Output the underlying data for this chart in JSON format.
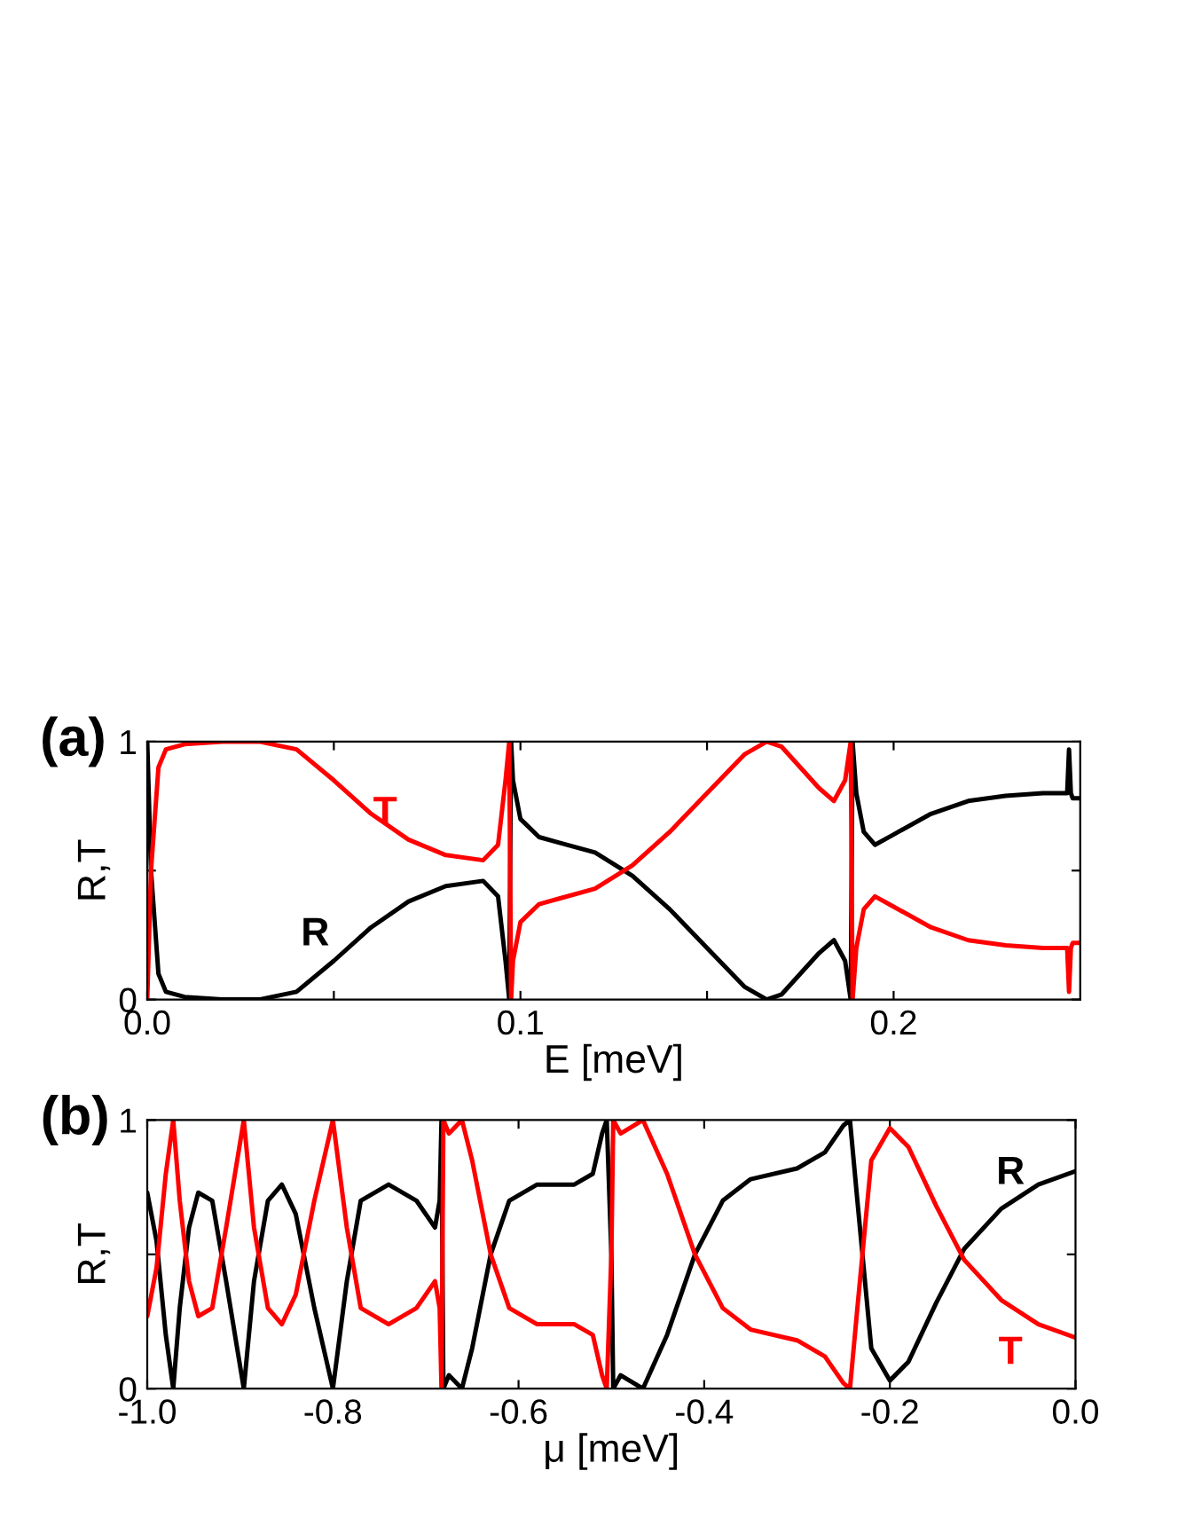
{
  "chart_data": [
    {
      "type": "line",
      "title": "(a)",
      "xlabel": "E [meV]",
      "ylabel": "R,T",
      "grid": false,
      "legend": false,
      "x": [
        0,
        0.001,
        0.003,
        0.005,
        0.01,
        0.02,
        0.03,
        0.04,
        0.05,
        0.06,
        0.07,
        0.08,
        0.09,
        0.094,
        0.096,
        0.097,
        0.0975,
        0.098,
        0.1,
        0.105,
        0.11,
        0.12,
        0.13,
        0.14,
        0.15,
        0.16,
        0.166,
        0.17,
        0.18,
        0.184,
        0.187,
        0.1885,
        0.189,
        0.19,
        0.192,
        0.195,
        0.2,
        0.21,
        0.22,
        0.23,
        0.24,
        0.2465,
        0.247,
        0.2475,
        0.248,
        0.25
      ],
      "series": [
        {
          "name": "R",
          "color": "#000000",
          "values": [
            1,
            0.5,
            0.1,
            0.03,
            0.01,
            0,
            0,
            0.03,
            0.15,
            0.28,
            0.38,
            0.44,
            0.46,
            0.4,
            0.15,
            0,
            1.0,
            0.85,
            0.7,
            0.63,
            0.61,
            0.57,
            0.48,
            0.35,
            0.2,
            0.05,
            0,
            0.02,
            0.18,
            0.23,
            0.15,
            0,
            1.0,
            0.8,
            0.65,
            0.6,
            0.64,
            0.72,
            0.77,
            0.79,
            0.8,
            0.8,
            0.97,
            0.8,
            0.78,
            0.78
          ]
        },
        {
          "name": "T",
          "color": "#ff0000",
          "values": [
            0,
            0.5,
            0.9,
            0.97,
            0.99,
            1.0,
            1.0,
            0.97,
            0.85,
            0.72,
            0.62,
            0.56,
            0.54,
            0.6,
            0.85,
            1.0,
            0.0,
            0.15,
            0.3,
            0.37,
            0.39,
            0.43,
            0.52,
            0.65,
            0.8,
            0.95,
            1.0,
            0.98,
            0.82,
            0.77,
            0.85,
            1.0,
            0.0,
            0.2,
            0.35,
            0.4,
            0.36,
            0.28,
            0.23,
            0.21,
            0.2,
            0.2,
            0.03,
            0.2,
            0.22,
            0.22
          ]
        }
      ],
      "xlim": [
        0,
        0.25
      ],
      "xticks": [
        {
          "value": 0,
          "label": "0.0"
        },
        {
          "value": 0.05,
          "label": null
        },
        {
          "value": 0.1,
          "label": "0.1"
        },
        {
          "value": 0.15,
          "label": null
        },
        {
          "value": 0.2,
          "label": "0.2"
        }
      ],
      "ylim": [
        0,
        1
      ],
      "yticks": [
        0,
        {
          "value": 0.5,
          "label": null
        },
        1
      ]
    },
    {
      "type": "line",
      "title": "(b)",
      "xlabel": "μ [meV]",
      "ylabel": "R,T",
      "grid": false,
      "legend": false,
      "x": [
        -1.0,
        -0.99,
        -0.98,
        -0.972,
        -0.965,
        -0.955,
        -0.945,
        -0.93,
        -0.915,
        -0.896,
        -0.885,
        -0.87,
        -0.855,
        -0.84,
        -0.82,
        -0.8,
        -0.785,
        -0.77,
        -0.74,
        -0.71,
        -0.69,
        -0.685,
        -0.683,
        -0.681,
        -0.675,
        -0.661,
        -0.65,
        -0.63,
        -0.61,
        -0.58,
        -0.54,
        -0.52,
        -0.51,
        -0.505,
        -0.5,
        -0.498,
        -0.49,
        -0.466,
        -0.44,
        -0.41,
        -0.38,
        -0.35,
        -0.3,
        -0.27,
        -0.25,
        -0.243,
        -0.235,
        -0.22,
        -0.2,
        -0.18,
        -0.15,
        -0.12,
        -0.08,
        -0.04,
        0.0
      ],
      "series": [
        {
          "name": "R",
          "color": "#000000",
          "values": [
            0.73,
            0.55,
            0.2,
            0,
            0.3,
            0.6,
            0.73,
            0.7,
            0.4,
            0,
            0.4,
            0.7,
            0.76,
            0.65,
            0.3,
            0,
            0.4,
            0.7,
            0.76,
            0.7,
            0.6,
            0.7,
            1.0,
            0,
            0.05,
            0,
            0.15,
            0.5,
            0.7,
            0.76,
            0.76,
            0.8,
            0.95,
            1.0,
            0.5,
            0,
            0.05,
            0,
            0.2,
            0.5,
            0.7,
            0.78,
            0.82,
            0.88,
            0.98,
            1.0,
            0.7,
            0.15,
            0.03,
            0.1,
            0.32,
            0.52,
            0.67,
            0.76,
            0.81
          ]
        },
        {
          "name": "T",
          "color": "#ff0000",
          "values": [
            0.27,
            0.45,
            0.8,
            1.0,
            0.7,
            0.4,
            0.27,
            0.3,
            0.6,
            1.0,
            0.6,
            0.3,
            0.24,
            0.35,
            0.7,
            1.0,
            0.6,
            0.3,
            0.24,
            0.3,
            0.4,
            0.3,
            0.0,
            1.0,
            0.95,
            1.0,
            0.85,
            0.5,
            0.3,
            0.24,
            0.24,
            0.2,
            0.05,
            0.0,
            0.5,
            1.0,
            0.95,
            1.0,
            0.8,
            0.5,
            0.3,
            0.22,
            0.18,
            0.12,
            0.02,
            0.0,
            0.3,
            0.85,
            0.97,
            0.9,
            0.68,
            0.48,
            0.33,
            0.24,
            0.19
          ]
        }
      ],
      "xlim": [
        -1.0,
        0.0
      ],
      "xticks": [
        {
          "value": -1.0,
          "label": "-1.0"
        },
        {
          "value": -0.8,
          "label": "-0.8"
        },
        {
          "value": -0.6,
          "label": "-0.6"
        },
        {
          "value": -0.4,
          "label": "-0.4"
        },
        {
          "value": -0.2,
          "label": "-0.2"
        },
        {
          "value": 0.0,
          "label": "0.0"
        }
      ],
      "ylim": [
        0,
        1
      ],
      "yticks": [
        0,
        {
          "value": 0.5,
          "label": null
        },
        1
      ]
    }
  ]
}
